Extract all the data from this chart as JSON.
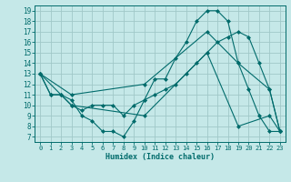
{
  "xlabel": "Humidex (Indice chaleur)",
  "background_color": "#c5e8e8",
  "grid_color": "#a0c8c8",
  "line_color": "#006b6b",
  "xlim": [
    -0.5,
    23.5
  ],
  "ylim": [
    6.5,
    19.5
  ],
  "xticks": [
    0,
    1,
    2,
    3,
    4,
    5,
    6,
    7,
    8,
    9,
    10,
    11,
    12,
    13,
    14,
    15,
    16,
    17,
    18,
    19,
    20,
    21,
    22,
    23
  ],
  "yticks": [
    7,
    8,
    9,
    10,
    11,
    12,
    13,
    14,
    15,
    16,
    17,
    18,
    19
  ],
  "line1_x": [
    0,
    1,
    2,
    3,
    4,
    5,
    6,
    7,
    8,
    9,
    10,
    11,
    12,
    13,
    14,
    15,
    16,
    17,
    18,
    19,
    20,
    21,
    22,
    23
  ],
  "line1_y": [
    13,
    11,
    11,
    10.5,
    9,
    8.5,
    7.5,
    7.5,
    7,
    8.5,
    10.5,
    12.5,
    12.5,
    14.5,
    16,
    18,
    19,
    19,
    18,
    14,
    11.5,
    9,
    7.5,
    7.5
  ],
  "line2_x": [
    0,
    1,
    2,
    3,
    4,
    5,
    6,
    7,
    8,
    9,
    10,
    11,
    12,
    13,
    14,
    15,
    16,
    17,
    18,
    19,
    20,
    21,
    22,
    23
  ],
  "line2_y": [
    13,
    11,
    11,
    10,
    9.5,
    10,
    10,
    10,
    9,
    10,
    10.5,
    11,
    11.5,
    12,
    13,
    14,
    15,
    16,
    16.5,
    17,
    16.5,
    14,
    11.5,
    7.5
  ],
  "line3_x": [
    0,
    3,
    10,
    16,
    19,
    22,
    23
  ],
  "line3_y": [
    13,
    11,
    12,
    17,
    14,
    11.5,
    7.5
  ],
  "line4_x": [
    0,
    3,
    10,
    16,
    19,
    22,
    23
  ],
  "line4_y": [
    13,
    10,
    9,
    15,
    8,
    9,
    7.5
  ]
}
